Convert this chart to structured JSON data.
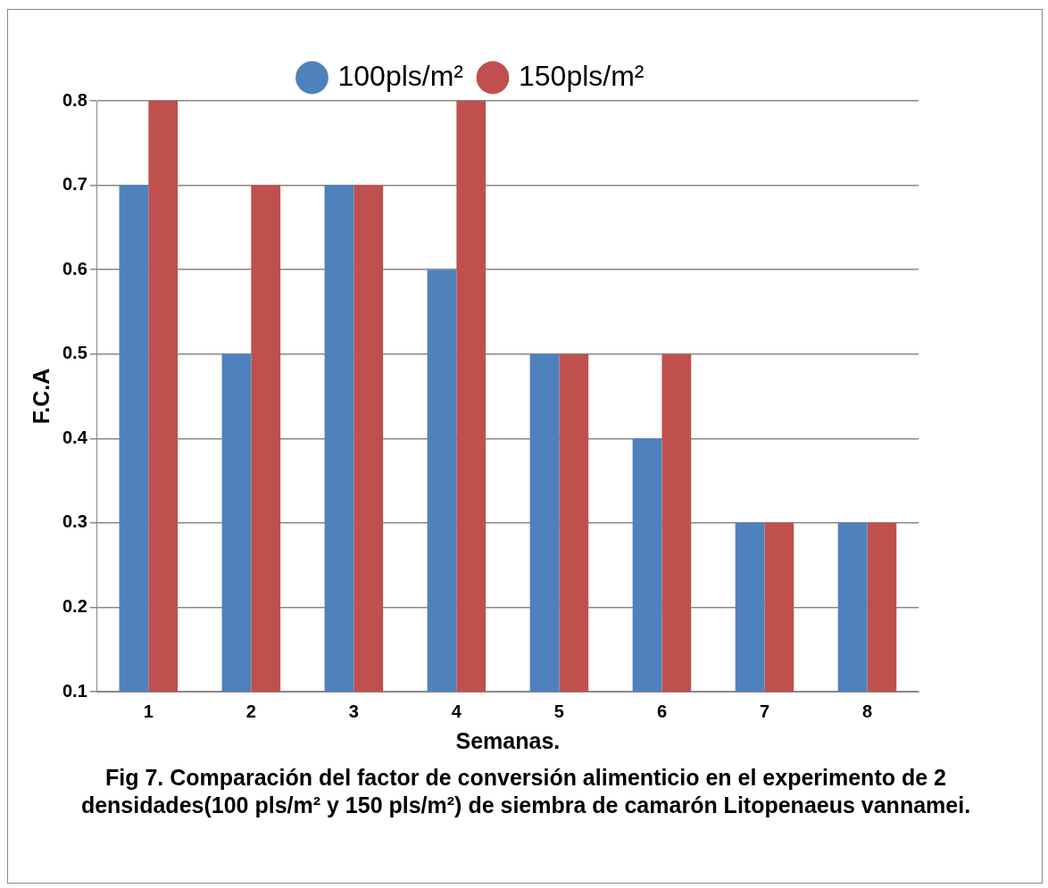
{
  "chart_data": {
    "type": "bar",
    "xlabel": "Semanas.",
    "ylabel": "F.C.A",
    "categories": [
      "1",
      "2",
      "3",
      "4",
      "5",
      "6",
      "7",
      "8"
    ],
    "series": [
      {
        "name": "100pls/m²",
        "color": "#4f81bd",
        "values": [
          0.7,
          0.5,
          0.7,
          0.6,
          0.5,
          0.4,
          0.3,
          0.3
        ]
      },
      {
        "name": "150pls/m²",
        "color": "#c0504d",
        "values": [
          0.8,
          0.7,
          0.7,
          0.8,
          0.5,
          0.5,
          0.3,
          0.3
        ]
      }
    ],
    "ylim": [
      0.1,
      0.8
    ],
    "yticks": [
      0.1,
      0.2,
      0.3,
      0.4,
      0.5,
      0.6,
      0.7,
      0.8
    ],
    "grid": "y",
    "legend": "top",
    "annotations": [
      "Fig 7. Comparación  del  factor de conversión alimenticio en el experimento  de 2 densidades(100 pls/m² y 150 pls/m²) de siembra de camarón  Litopenaeus vannamei."
    ]
  }
}
